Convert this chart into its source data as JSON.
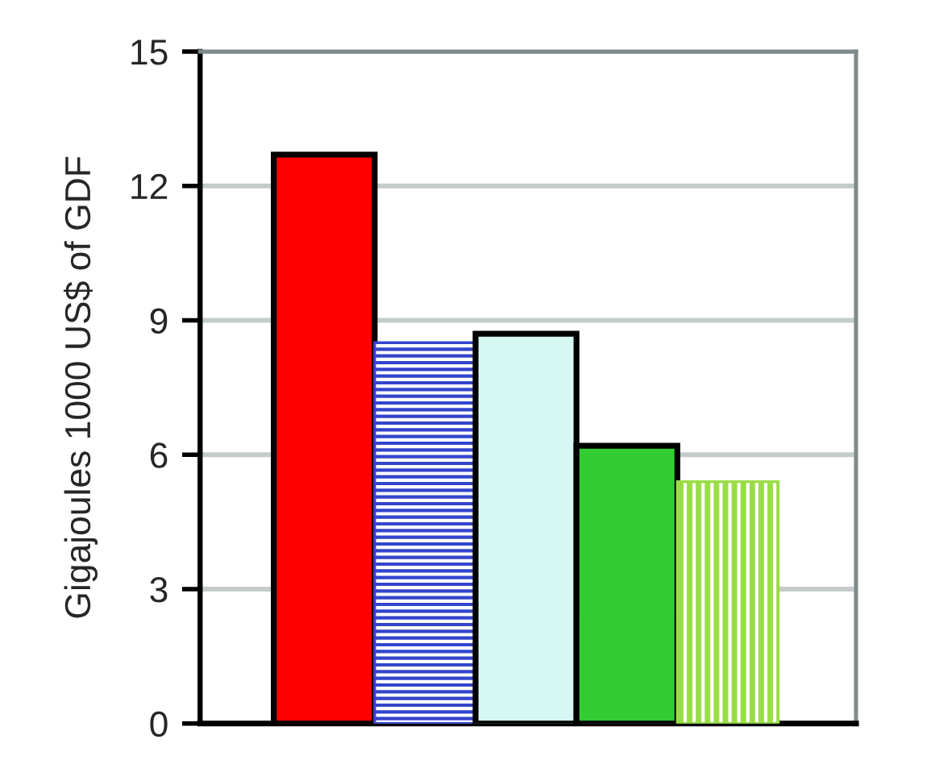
{
  "chart_data": {
    "type": "bar",
    "ylabel": "Gigajoules 1000 US$ of GDF",
    "categories": [
      null,
      null,
      null,
      null,
      null
    ],
    "values": [
      12.7,
      8.5,
      8.7,
      6.2,
      5.4
    ],
    "colors": [
      "#ff0000",
      "#3344cc",
      "#d6f8f2",
      "#33cc33",
      "#99dd44"
    ],
    "ylim": [
      0,
      15
    ],
    "yticks": [
      0,
      3,
      6,
      9,
      12,
      15
    ],
    "grid": "y",
    "tick_labels": "y"
  }
}
